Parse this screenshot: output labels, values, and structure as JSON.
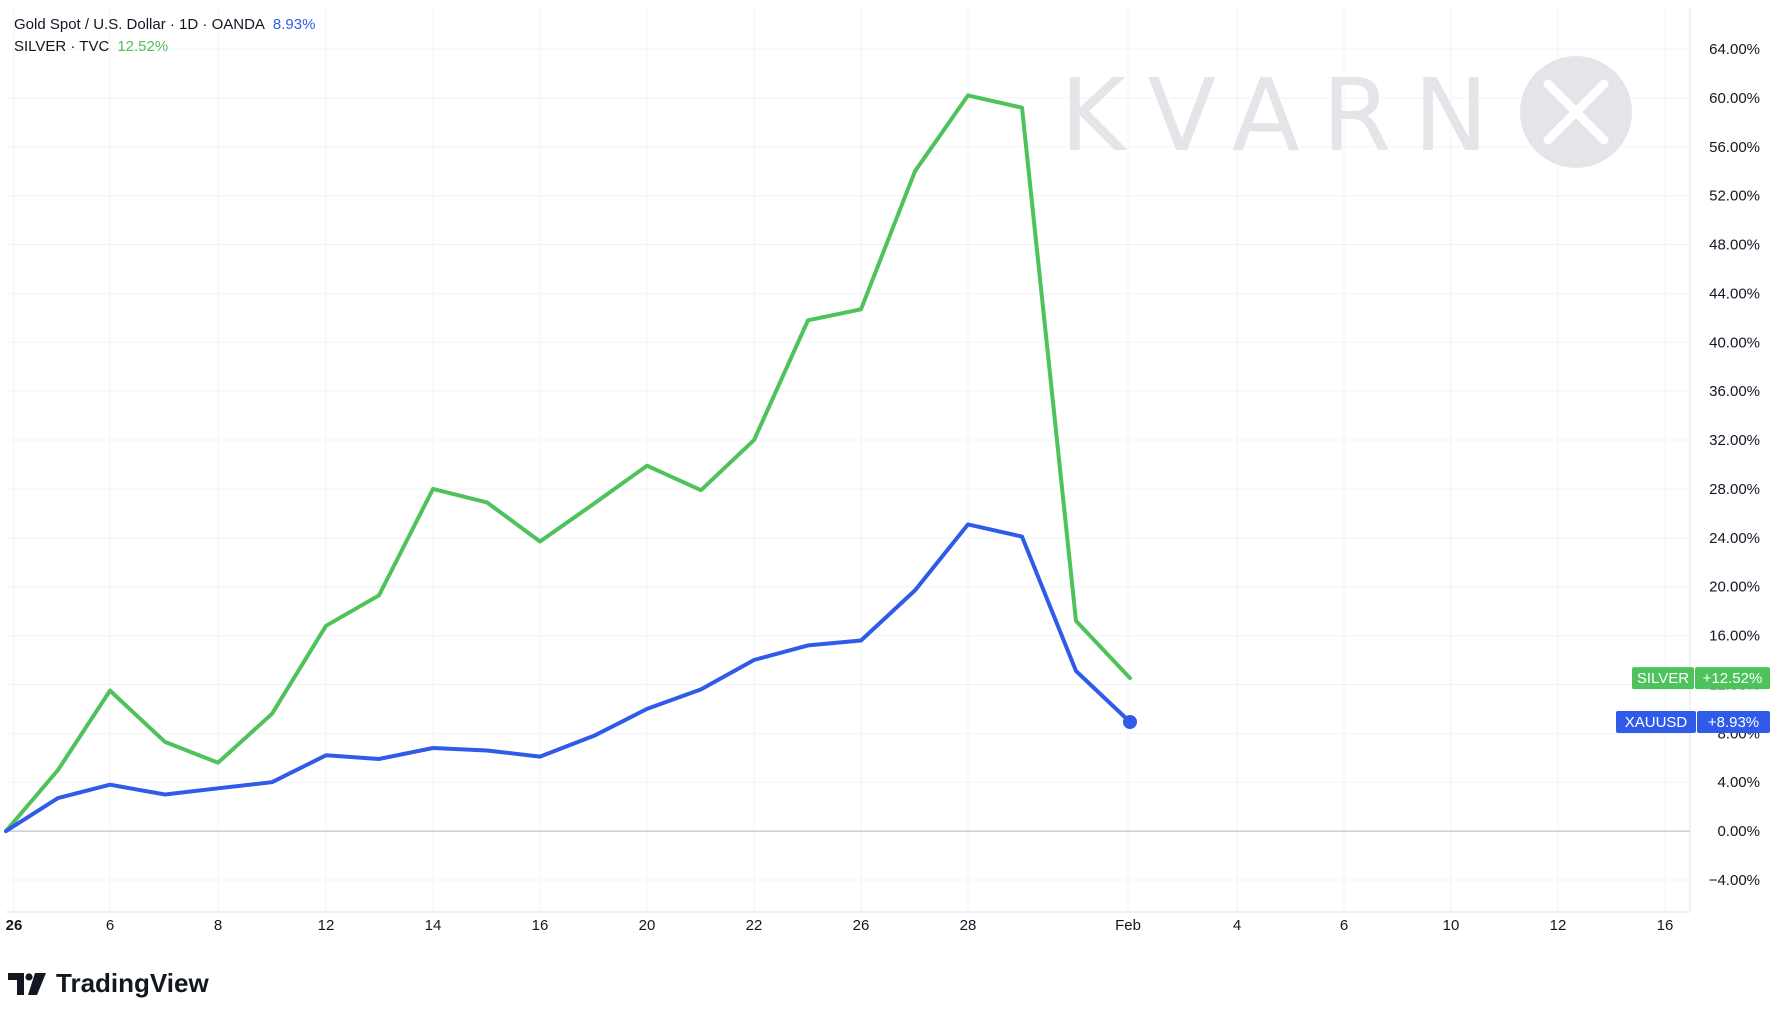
{
  "legend": {
    "gold_label": "Gold Spot / U.S. Dollar · 1D · OANDA",
    "gold_value": "8.93%",
    "silver_label": "SILVER · TVC",
    "silver_value": "12.52%"
  },
  "watermark": "KVARN",
  "brand": "TradingView",
  "colors": {
    "silver": "#4ec25b",
    "gold": "#2f5be8",
    "grid": "#f0f3fa",
    "zero_line": "#c8cbd2",
    "watermark": "#e3e5e8"
  },
  "badges": [
    {
      "symbol": "SILVER",
      "value": "+12.52%",
      "color": "#4ec25b"
    },
    {
      "symbol": "XAUUSD",
      "value": "+8.93%",
      "color": "#2f5be8"
    }
  ],
  "chart_data": {
    "type": "line",
    "x_ticks": [
      "26",
      "6",
      "8",
      "12",
      "14",
      "16",
      "20",
      "22",
      "26",
      "28",
      "Feb",
      "4",
      "6",
      "10",
      "12",
      "16"
    ],
    "y_ticks": [
      "64.00%",
      "60.00%",
      "56.00%",
      "52.00%",
      "48.00%",
      "44.00%",
      "40.00%",
      "36.00%",
      "32.00%",
      "28.00%",
      "24.00%",
      "20.00%",
      "16.00%",
      "12.00%",
      "8.00%",
      "4.00%",
      "0.00%",
      "−4.00%"
    ],
    "ylim": [
      -4,
      64
    ],
    "unit": "%",
    "series": [
      {
        "name": "SILVER",
        "values": [
          0,
          5,
          11.5,
          7.3,
          5.6,
          9.6,
          16.8,
          19.3,
          28,
          26.9,
          23.7,
          26.8,
          29.9,
          27.9,
          32,
          41.8,
          42.7,
          54,
          60.2,
          59.2,
          17.2,
          12.52
        ]
      },
      {
        "name": "XAUUSD",
        "values": [
          0,
          2.7,
          3.8,
          3,
          3.5,
          4,
          6.2,
          5.9,
          6.8,
          6.6,
          6.1,
          7.8,
          10,
          11.6,
          14,
          15.2,
          15.6,
          19.7,
          25.1,
          24.1,
          13.1,
          8.93
        ]
      }
    ]
  }
}
